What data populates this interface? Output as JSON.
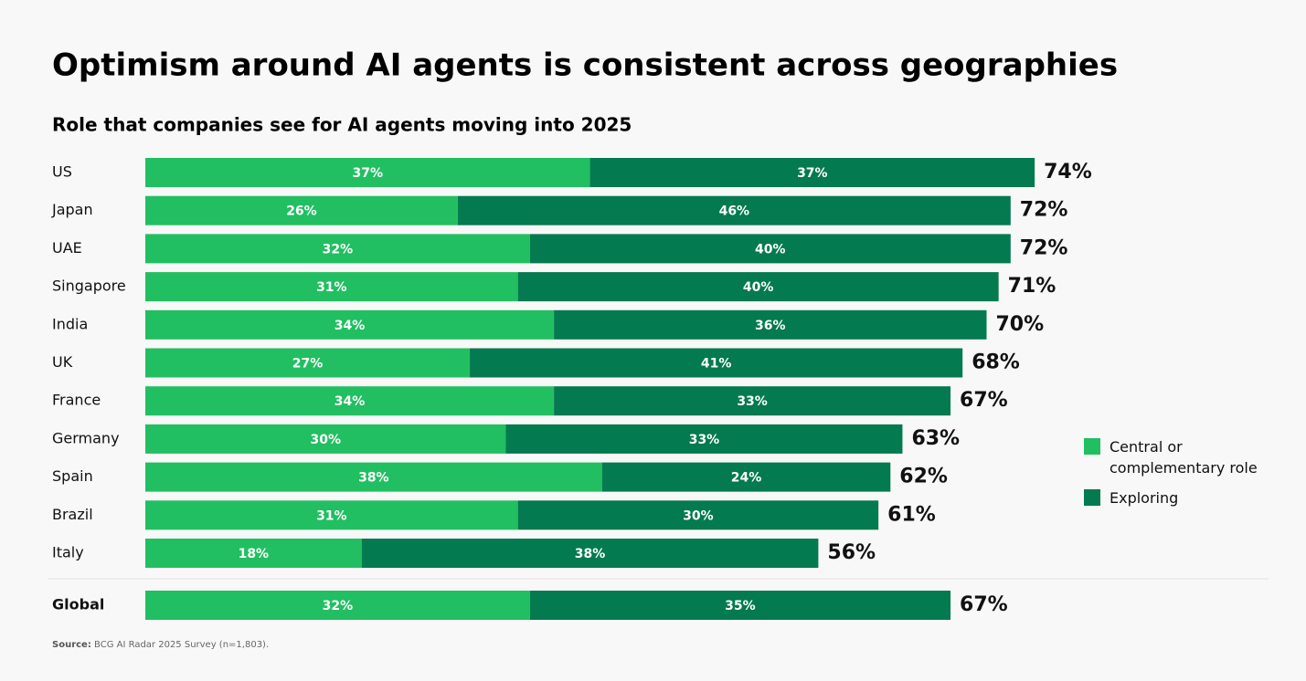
{
  "chart_data": {
    "type": "stacked-bar-horizontal",
    "title": "Optimism around AI agents is consistent across geographies",
    "subtitle": "Role that companies see for AI agents moving into 2025",
    "categories": [
      "US",
      "Japan",
      "UAE",
      "Singapore",
      "India",
      "UK",
      "France",
      "Germany",
      "Spain",
      "Brazil",
      "Italy",
      "Global"
    ],
    "series": [
      {
        "name": "Central or complementary role",
        "color": "#21bf61",
        "values": [
          37,
          26,
          32,
          31,
          34,
          27,
          34,
          30,
          38,
          31,
          18,
          32
        ],
        "value_labels": [
          "37%",
          "26%",
          "32%",
          "31%",
          "34%",
          "27%",
          "34%",
          "30%",
          "38%",
          "31%",
          "18%",
          "32%"
        ]
      },
      {
        "name": "Exploring",
        "color": "#037a4f",
        "values": [
          37,
          46,
          40,
          40,
          36,
          41,
          33,
          33,
          24,
          30,
          38,
          35
        ],
        "value_labels": [
          "37%",
          "46%",
          "40%",
          "40%",
          "36%",
          "41%",
          "33%",
          "33%",
          "24%",
          "30%",
          "38%",
          "35%"
        ]
      }
    ],
    "totals": [
      74,
      72,
      72,
      71,
      70,
      68,
      67,
      63,
      62,
      61,
      56,
      67
    ],
    "total_labels": [
      "74%",
      "72%",
      "72%",
      "71%",
      "70%",
      "68%",
      "67%",
      "63%",
      "62%",
      "61%",
      "56%",
      "67%"
    ],
    "legend": "right",
    "source": {
      "label": "Source:",
      "text": "BCG AI Radar 2025 Survey (n=1,803)."
    }
  }
}
